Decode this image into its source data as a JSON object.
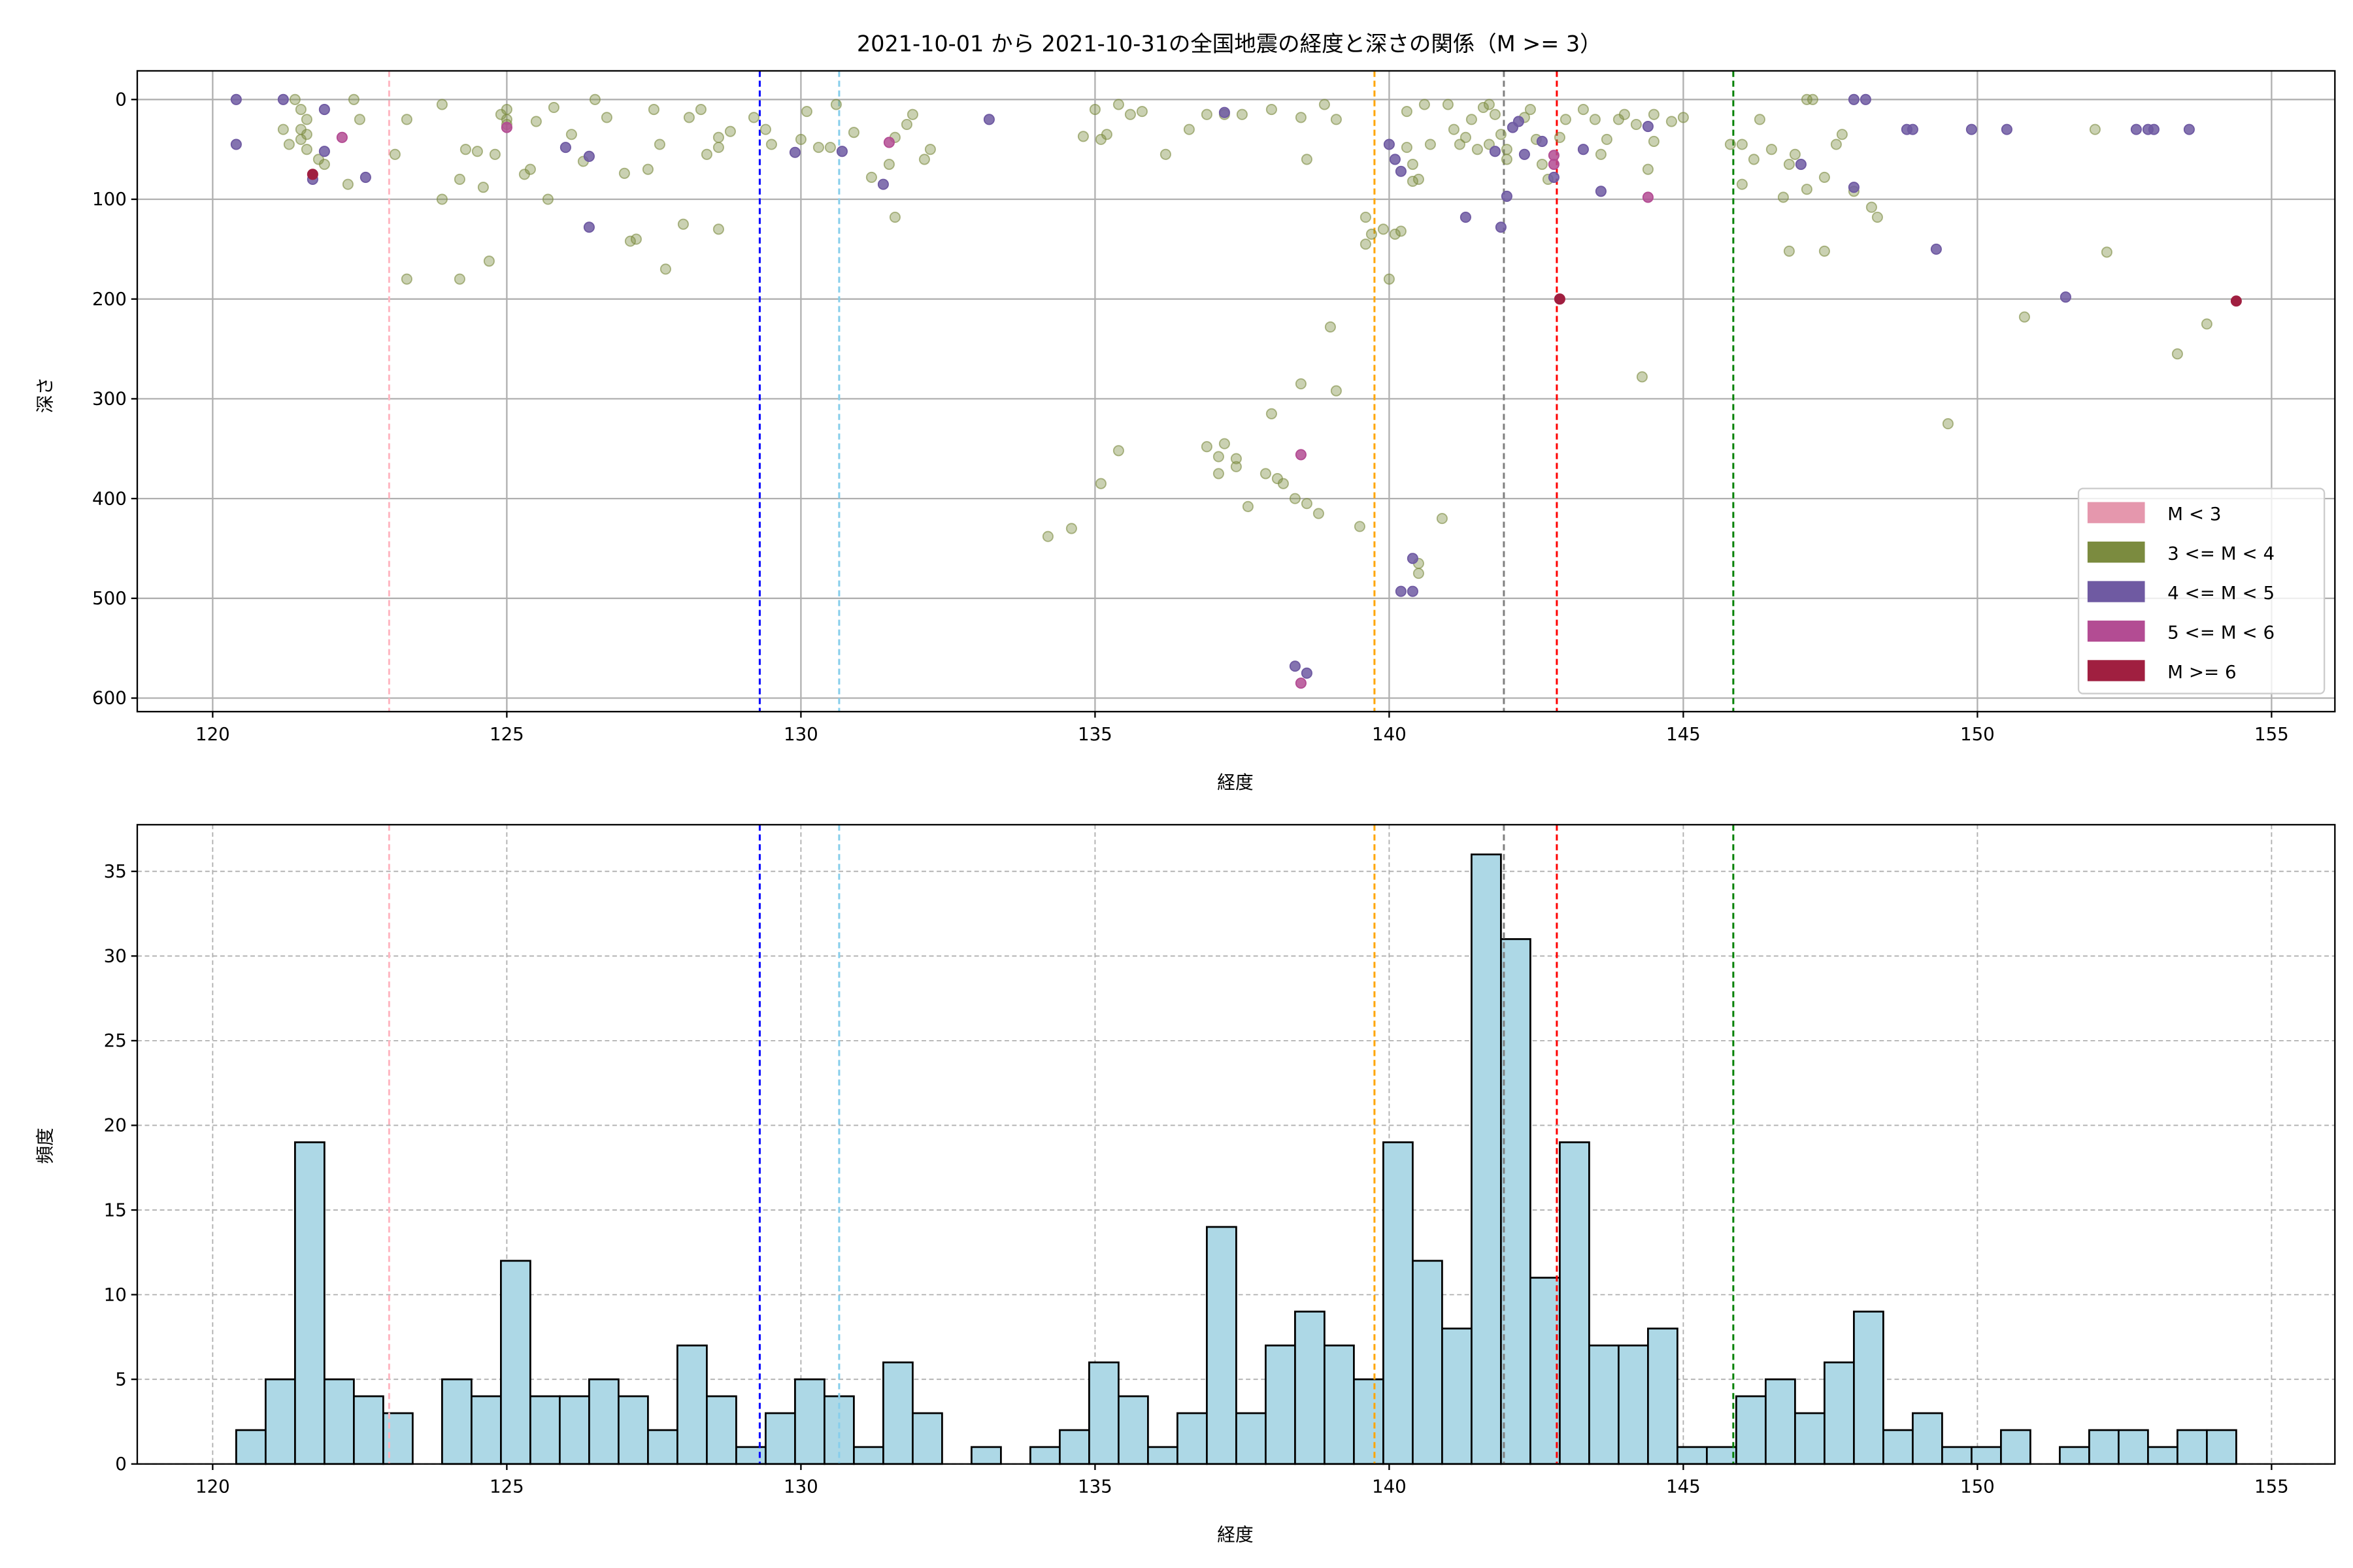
{
  "chart_data": [
    {
      "type": "scatter",
      "title": "2021-10-01 から 2021-10-31の全国地震の経度と深さの関係（M >= 3）",
      "xlabel": "経度",
      "ylabel": "深さ",
      "xlim": [
        118.5,
        156.1
      ],
      "ylim": [
        615,
        -28
      ],
      "y_inverted": true,
      "grid": true,
      "xticks": [
        "120",
        "125",
        "130",
        "135",
        "140",
        "145",
        "150",
        "155"
      ],
      "yticks": [
        "0",
        "100",
        "200",
        "300",
        "400",
        "500",
        "600"
      ],
      "legend_position": "lower-right",
      "legend": [
        {
          "label": "M < 3",
          "color": "#e597ad"
        },
        {
          "label": "3 <= M < 4",
          "color": "#7b8b3f"
        },
        {
          "label": "4 <= M < 5",
          "color": "#6f5aa2"
        },
        {
          "label": "5 <= M < 6",
          "color": "#b34c93"
        },
        {
          "label": "M >= 6",
          "color": "#a01f40"
        }
      ],
      "vlines": [
        {
          "x": 123.0,
          "color": "#ffb6c1"
        },
        {
          "x": 129.3,
          "color": "#0000ff"
        },
        {
          "x": 130.65,
          "color": "#87ceeb"
        },
        {
          "x": 139.75,
          "color": "#ffa500"
        },
        {
          "x": 141.95,
          "color": "#808080"
        },
        {
          "x": 142.85,
          "color": "#ff0000"
        },
        {
          "x": 145.85,
          "color": "#008000"
        }
      ],
      "points_m3": [
        [
          121.2,
          30
        ],
        [
          121.3,
          45
        ],
        [
          121.4,
          0
        ],
        [
          121.5,
          10
        ],
        [
          121.6,
          20
        ],
        [
          121.5,
          30
        ],
        [
          121.6,
          35
        ],
        [
          121.6,
          50
        ],
        [
          121.8,
          60
        ],
        [
          121.9,
          65
        ],
        [
          121.5,
          40
        ],
        [
          122.3,
          85
        ],
        [
          122.4,
          0
        ],
        [
          122.5,
          20
        ],
        [
          123.1,
          55
        ],
        [
          123.3,
          180
        ],
        [
          123.3,
          20
        ],
        [
          123.9,
          5
        ],
        [
          123.9,
          100
        ],
        [
          124.2,
          80
        ],
        [
          124.2,
          180
        ],
        [
          124.3,
          50
        ],
        [
          124.5,
          52
        ],
        [
          124.6,
          88
        ],
        [
          124.7,
          162
        ],
        [
          124.8,
          55
        ],
        [
          124.9,
          15
        ],
        [
          125,
          20
        ],
        [
          125,
          10
        ],
        [
          125,
          25
        ],
        [
          125.3,
          75
        ],
        [
          125.4,
          70
        ],
        [
          125.5,
          22
        ],
        [
          125.7,
          100
        ],
        [
          125.8,
          8
        ],
        [
          126.1,
          35
        ],
        [
          126.3,
          62
        ],
        [
          126.5,
          0
        ],
        [
          126.7,
          18
        ],
        [
          127,
          74
        ],
        [
          127.1,
          142
        ],
        [
          127.2,
          140
        ],
        [
          127.4,
          70
        ],
        [
          127.6,
          45
        ],
        [
          127.7,
          170
        ],
        [
          127.5,
          10
        ],
        [
          128,
          125
        ],
        [
          128.1,
          18
        ],
        [
          128.3,
          10
        ],
        [
          128.4,
          55
        ],
        [
          128.6,
          48
        ],
        [
          128.6,
          130
        ],
        [
          128.8,
          32
        ],
        [
          128.6,
          38
        ],
        [
          129.2,
          18
        ],
        [
          129.4,
          30
        ],
        [
          129.5,
          45
        ],
        [
          130,
          40
        ],
        [
          130.1,
          12
        ],
        [
          130.3,
          48
        ],
        [
          130.5,
          48
        ],
        [
          130.6,
          5
        ],
        [
          130.9,
          33
        ],
        [
          131.2,
          78
        ],
        [
          131.5,
          65
        ],
        [
          131.6,
          118
        ],
        [
          131.8,
          25
        ],
        [
          131.9,
          15
        ],
        [
          131.6,
          38
        ],
        [
          132.2,
          50
        ],
        [
          132.1,
          60
        ],
        [
          134.2,
          438
        ],
        [
          134.6,
          430
        ],
        [
          134.8,
          37
        ],
        [
          135,
          10
        ],
        [
          135.2,
          35
        ],
        [
          135.1,
          40
        ],
        [
          135.1,
          385
        ],
        [
          135.4,
          5
        ],
        [
          135.4,
          352
        ],
        [
          135.6,
          15
        ],
        [
          135.8,
          12
        ],
        [
          136.2,
          55
        ],
        [
          136.6,
          30
        ],
        [
          136.9,
          15
        ],
        [
          136.9,
          348
        ],
        [
          137.2,
          15
        ],
        [
          137.5,
          15
        ],
        [
          137.1,
          358
        ],
        [
          137.2,
          345
        ],
        [
          137.1,
          375
        ],
        [
          137.4,
          360
        ],
        [
          137.4,
          368
        ],
        [
          137.6,
          408
        ],
        [
          137.9,
          375
        ],
        [
          138,
          10
        ],
        [
          138,
          315
        ],
        [
          138.2,
          385
        ],
        [
          138.1,
          380
        ],
        [
          138.5,
          18
        ],
        [
          138.4,
          400
        ],
        [
          138.5,
          285
        ],
        [
          138.6,
          60
        ],
        [
          138.6,
          405
        ],
        [
          138.9,
          5
        ],
        [
          138.8,
          415
        ],
        [
          139,
          228
        ],
        [
          139.1,
          20
        ],
        [
          139.1,
          292
        ],
        [
          139.5,
          428
        ],
        [
          139.6,
          118
        ],
        [
          139.6,
          145
        ],
        [
          139.7,
          135
        ],
        [
          139.9,
          130
        ],
        [
          140,
          180
        ],
        [
          140.2,
          132
        ],
        [
          140.1,
          135
        ],
        [
          140.3,
          12
        ],
        [
          140.4,
          65
        ],
        [
          140.4,
          82
        ],
        [
          140.5,
          80
        ],
        [
          140.3,
          48
        ],
        [
          140.5,
          465
        ],
        [
          140.5,
          475
        ],
        [
          140.6,
          5
        ],
        [
          140.9,
          420
        ],
        [
          140.7,
          45
        ],
        [
          141,
          5
        ],
        [
          141.2,
          45
        ],
        [
          141.1,
          30
        ],
        [
          141.3,
          38
        ],
        [
          141.4,
          20
        ],
        [
          141.5,
          50
        ],
        [
          141.6,
          8
        ],
        [
          141.7,
          5
        ],
        [
          141.7,
          45
        ],
        [
          141.8,
          15
        ],
        [
          141.9,
          35
        ],
        [
          142,
          50
        ],
        [
          142,
          60
        ],
        [
          142.3,
          18
        ],
        [
          142.4,
          10
        ],
        [
          142.5,
          40
        ],
        [
          142.6,
          65
        ],
        [
          142.7,
          80
        ],
        [
          142.9,
          38
        ],
        [
          143,
          20
        ],
        [
          143.3,
          10
        ],
        [
          143.5,
          20
        ],
        [
          143.6,
          55
        ],
        [
          143.7,
          40
        ],
        [
          143.9,
          20
        ],
        [
          144,
          15
        ],
        [
          144.2,
          25
        ],
        [
          144.3,
          278
        ],
        [
          144.5,
          15
        ],
        [
          144.5,
          42
        ],
        [
          144.4,
          70
        ],
        [
          144.8,
          22
        ],
        [
          145,
          18
        ],
        [
          145.8,
          45
        ],
        [
          146,
          45
        ],
        [
          146,
          85
        ],
        [
          146.2,
          60
        ],
        [
          146.3,
          20
        ],
        [
          146.5,
          50
        ],
        [
          146.7,
          98
        ],
        [
          146.8,
          152
        ],
        [
          146.8,
          65
        ],
        [
          146.9,
          55
        ],
        [
          147.1,
          0
        ],
        [
          147.2,
          0
        ],
        [
          147.1,
          90
        ],
        [
          147.4,
          78
        ],
        [
          147.4,
          152
        ],
        [
          147.6,
          45
        ],
        [
          147.7,
          35
        ],
        [
          147.9,
          92
        ],
        [
          148.2,
          108
        ],
        [
          148.3,
          118
        ],
        [
          149.5,
          325
        ],
        [
          150.8,
          218
        ],
        [
          152,
          30
        ],
        [
          152.2,
          153
        ],
        [
          153.4,
          255
        ],
        [
          153.9,
          225
        ]
      ],
      "points_m4": [
        [
          120.4,
          0
        ],
        [
          120.4,
          45
        ],
        [
          121.2,
          0
        ],
        [
          121.9,
          10
        ],
        [
          122.6,
          78
        ],
        [
          121.7,
          80
        ],
        [
          121.9,
          52
        ],
        [
          126,
          48
        ],
        [
          126.4,
          57
        ],
        [
          126.4,
          128
        ],
        [
          129.9,
          53
        ],
        [
          130.7,
          52
        ],
        [
          131.4,
          85
        ],
        [
          133.2,
          20
        ],
        [
          137.2,
          13
        ],
        [
          138.4,
          568
        ],
        [
          138.6,
          575
        ],
        [
          140,
          45
        ],
        [
          140.1,
          60
        ],
        [
          140.2,
          72
        ],
        [
          140.4,
          460
        ],
        [
          140.4,
          493
        ],
        [
          140.2,
          493
        ],
        [
          141.3,
          118
        ],
        [
          141.8,
          52
        ],
        [
          142,
          97
        ],
        [
          141.9,
          128
        ],
        [
          142.1,
          28
        ],
        [
          142.2,
          22
        ],
        [
          142.3,
          55
        ],
        [
          142.6,
          42
        ],
        [
          142.8,
          78
        ],
        [
          143.3,
          50
        ],
        [
          143.6,
          92
        ],
        [
          144.4,
          27
        ],
        [
          147,
          65
        ],
        [
          147.9,
          88
        ],
        [
          147.9,
          0
        ],
        [
          148.1,
          0
        ],
        [
          148.8,
          30
        ],
        [
          148.9,
          30
        ],
        [
          149.9,
          30
        ],
        [
          149.3,
          150
        ],
        [
          150.5,
          30
        ],
        [
          151.5,
          198
        ],
        [
          152.7,
          30
        ],
        [
          153,
          30
        ],
        [
          152.9,
          30
        ],
        [
          153.6,
          30
        ]
      ],
      "points_m5": [
        [
          122.2,
          38
        ],
        [
          125,
          28
        ],
        [
          131.5,
          43
        ],
        [
          138.5,
          356
        ],
        [
          138.5,
          585
        ],
        [
          142.8,
          65
        ],
        [
          142.8,
          56
        ],
        [
          144.4,
          98
        ]
      ],
      "points_m6": [
        [
          121.7,
          75
        ],
        [
          142.9,
          200
        ],
        [
          154.4,
          202
        ]
      ]
    },
    {
      "type": "bar",
      "subtype": "histogram",
      "xlabel": "経度",
      "ylabel": "頻度",
      "xlim": [
        118.5,
        156.1
      ],
      "ylim": [
        0,
        37.8
      ],
      "grid": true,
      "bar_color": "#add8e6",
      "xticks": [
        "120",
        "125",
        "130",
        "135",
        "140",
        "145",
        "150",
        "155"
      ],
      "yticks": [
        "0",
        "5",
        "10",
        "15",
        "20",
        "25",
        "30",
        "35"
      ],
      "bin_start": 120.4,
      "bin_width": 0.5,
      "counts": [
        2,
        5,
        19,
        5,
        4,
        3,
        0,
        5,
        4,
        12,
        4,
        4,
        5,
        4,
        2,
        7,
        4,
        1,
        3,
        5,
        4,
        1,
        6,
        3,
        0,
        1,
        0,
        1,
        2,
        6,
        4,
        1,
        3,
        14,
        3,
        7,
        9,
        7,
        5,
        19,
        12,
        8,
        36,
        31,
        11,
        19,
        7,
        7,
        8,
        1,
        1,
        4,
        5,
        3,
        6,
        9,
        2,
        3,
        1,
        1,
        2,
        0,
        1,
        2,
        2,
        1,
        2,
        2
      ]
    }
  ]
}
